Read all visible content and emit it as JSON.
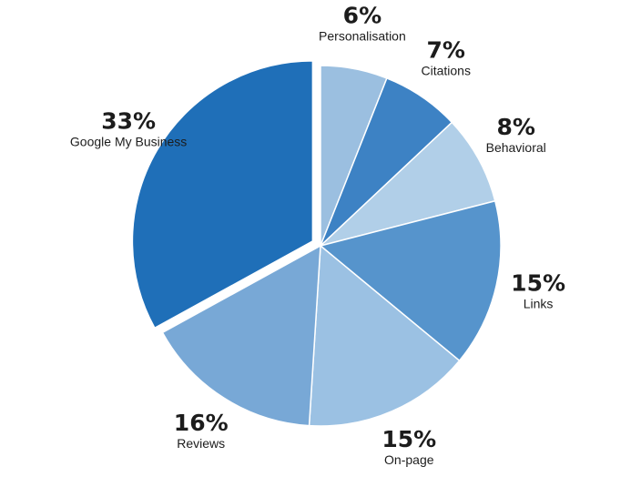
{
  "chart_data": {
    "type": "pie",
    "title": "",
    "start_angle_deg": 0,
    "direction": "clockwise",
    "exploded": [
      "Google My Business"
    ],
    "slices": [
      {
        "label": "Personalisation",
        "value": 6,
        "value_label": "6%",
        "color": "#9bbfe0"
      },
      {
        "label": "Citations",
        "value": 7,
        "value_label": "7%",
        "color": "#3d82c4"
      },
      {
        "label": "Behavioral",
        "value": 8,
        "value_label": "8%",
        "color": "#b1cfe8"
      },
      {
        "label": "Links",
        "value": 15,
        "value_label": "15%",
        "color": "#5694cc"
      },
      {
        "label": "On-page",
        "value": 15,
        "value_label": "15%",
        "color": "#9bc1e3"
      },
      {
        "label": "Reviews",
        "value": 16,
        "value_label": "16%",
        "color": "#78a8d6"
      },
      {
        "label": "Google My Business",
        "value": 33,
        "value_label": "33%",
        "color": "#1f6fb8"
      }
    ]
  }
}
